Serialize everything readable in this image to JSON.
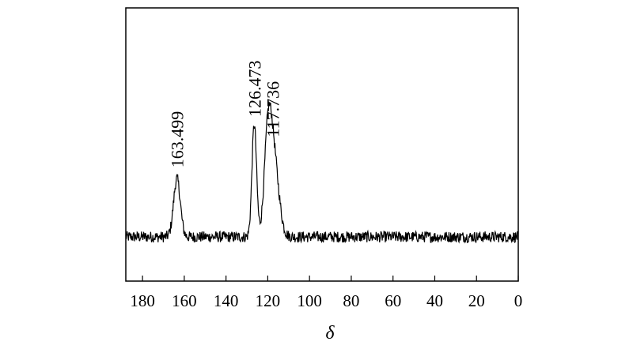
{
  "chart_data": {
    "type": "line",
    "title": "",
    "xlabel": "δ",
    "ylabel": "",
    "xlim": [
      188,
      0
    ],
    "x_reversed": true,
    "y_axis_shown": false,
    "grid": false,
    "legend": "none",
    "line_color": "#000000",
    "xticks": [
      180,
      160,
      140,
      120,
      100,
      80,
      60,
      40,
      20,
      0
    ],
    "baseline_level": 0.0,
    "peaks": [
      {
        "x": 163.499,
        "label": "163.499",
        "height": 0.52
      },
      {
        "x": 126.473,
        "label": "126.473",
        "height": 1.0
      },
      {
        "x": 117.736,
        "label": "117.736",
        "height": 0.82
      }
    ],
    "noise_level": 0.05
  }
}
